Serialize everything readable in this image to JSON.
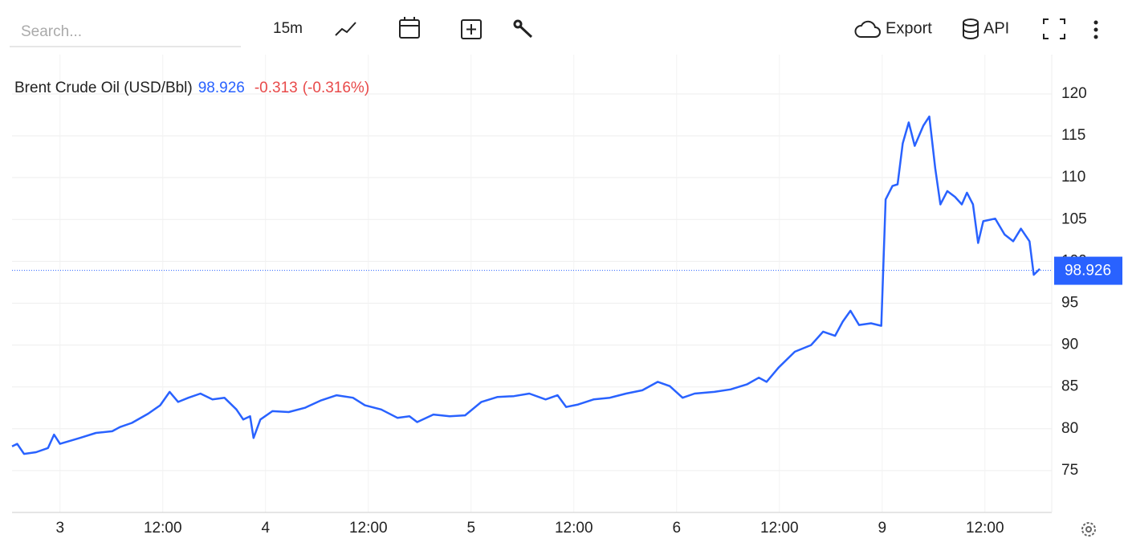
{
  "toolbar": {
    "search_placeholder": "Search...",
    "interval": "15m",
    "export": "Export",
    "api": "API"
  },
  "header": {
    "change": "-0.313",
    "change_percent": "(-0.316%)"
  },
  "chart_data": {
    "type": "line",
    "x": [
      -5.6,
      -5.0,
      -4.2,
      -2.8,
      -1.4,
      -0.7,
      0,
      2.3,
      4.2,
      6.1,
      7.0,
      8.4,
      10.3,
      11.7,
      12.8,
      13.8,
      15.0,
      16.4,
      17.8,
      19.2,
      20.6,
      21.4,
      22.2,
      22.6,
      23.4,
      24.8,
      26.7,
      28.6,
      30.5,
      32.3,
      34.2,
      35.6,
      37.5,
      39.4,
      40.8,
      41.7,
      43.6,
      45.5,
      47.3,
      49.2,
      51.1,
      53.0,
      54.8,
      56.7,
      58.1,
      59.1,
      60.5,
      62.3,
      64.2,
      66.1,
      68.0,
      69.8,
      71.2,
      72.7,
      74.1,
      76.4,
      78.3,
      80.2,
      81.6,
      82.5,
      83.9,
      85.8,
      87.7,
      89.1,
      90.5,
      91.4,
      92.3,
      93.3,
      94.7,
      95.9,
      96.4,
      97.2,
      97.8,
      98.4,
      99.1,
      99.8,
      100.8,
      101.5,
      102.2,
      102.8,
      103.6,
      104.5,
      105.3,
      105.9,
      106.6,
      107.2,
      107.8,
      109.2,
      110.3,
      111.3,
      112.2,
      113.2,
      113.7,
      114.4
    ],
    "series": [
      {
        "name": "Brent Crude Oil (USD/Bbl)",
        "color": "#2962ff",
        "values": [
          77.9,
          78.2,
          77.0,
          77.2,
          77.7,
          79.3,
          78.2,
          78.9,
          79.5,
          79.7,
          80.2,
          80.7,
          81.8,
          82.8,
          84.4,
          83.2,
          83.7,
          84.2,
          83.5,
          83.7,
          82.3,
          81.1,
          81.5,
          78.9,
          81.1,
          82.1,
          82.0,
          82.5,
          83.4,
          84.0,
          83.7,
          82.8,
          82.3,
          81.3,
          81.5,
          80.8,
          81.7,
          81.5,
          81.6,
          83.2,
          83.8,
          83.9,
          84.2,
          83.5,
          84.0,
          82.6,
          82.9,
          83.5,
          83.7,
          84.2,
          84.6,
          85.6,
          85.1,
          83.7,
          84.2,
          84.4,
          84.7,
          85.3,
          86.1,
          85.6,
          87.3,
          89.2,
          90.0,
          91.6,
          91.1,
          92.8,
          94.1,
          92.4,
          92.6,
          92.3,
          107.4,
          109.0,
          109.2,
          114.1,
          116.6,
          113.8,
          116.2,
          117.3,
          111.1,
          106.8,
          108.4,
          107.7,
          106.8,
          108.2,
          106.8,
          102.2,
          104.8,
          105.1,
          103.2,
          102.4,
          103.9,
          102.4,
          98.4,
          99.1
        ]
      }
    ],
    "last_value": 98.926,
    "xlim": [
      -5.6,
      115.8
    ],
    "xticks": [
      {
        "value": 0,
        "label": "3"
      },
      12,
      {
        "value": 24,
        "label": "4"
      },
      36,
      {
        "value": 48,
        "label": "5"
      },
      60,
      {
        "value": 72,
        "label": "6"
      },
      84,
      {
        "value": 96,
        "label": "9"
      },
      108
    ],
    "xtick_label_template": "12:00",
    "ylim": [
      70,
      124.7
    ],
    "yticks": [
      75,
      80,
      85,
      90,
      95,
      100,
      105,
      110,
      115,
      120
    ],
    "grid": true
  }
}
